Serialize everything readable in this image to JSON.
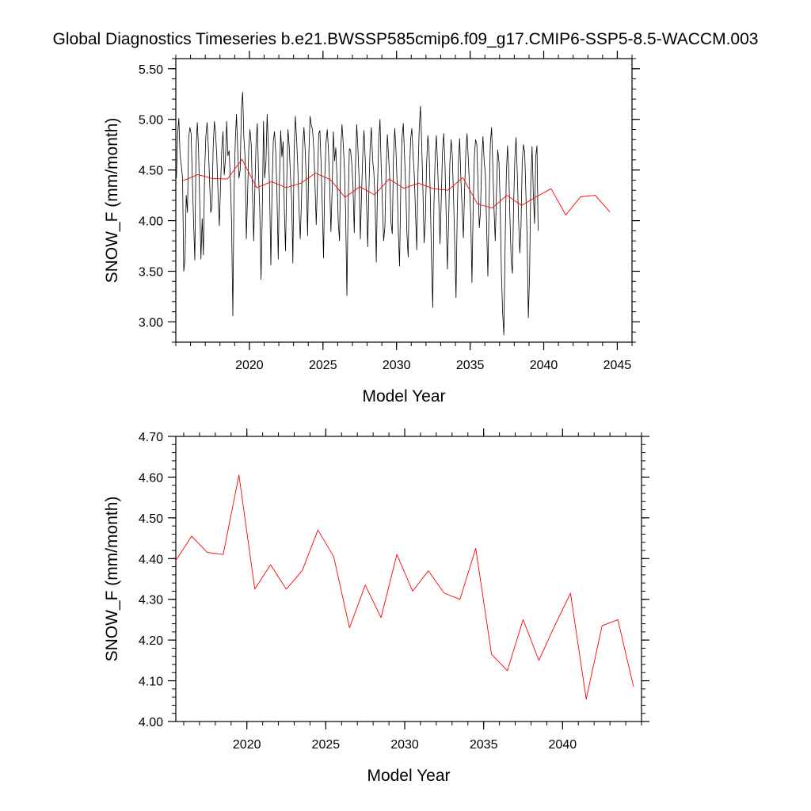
{
  "figure": {
    "title": "Global Diagnostics Timeseries b.e21.BWSSP585cmip6.f09_g17.CMIP6-SSP5-8.5-WACCM.003"
  },
  "colors": {
    "monthly": "#000000",
    "annual": "#ff0000",
    "axis": "#000000"
  },
  "chart_data": [
    {
      "type": "line",
      "title": "Global Diagnostics Timeseries b.e21.BWSSP585cmip6.f09_g17.CMIP6-SSP5-8.5-WACCM.003",
      "xlabel": "Model Year",
      "ylabel": "SNOW_F (mm/month)",
      "xlim": [
        2015,
        2046
      ],
      "ylim": [
        2.8,
        5.6
      ],
      "xticks": [
        2020,
        2025,
        2030,
        2035,
        2040,
        2045
      ],
      "xtick_labels": [
        "2020",
        "2025",
        "2030",
        "2035",
        "2040",
        "2045"
      ],
      "yticks": [
        3.0,
        3.5,
        4.0,
        4.5,
        5.0,
        5.5
      ],
      "ytick_labels": [
        "3.00",
        "3.50",
        "4.00",
        "4.50",
        "5.00",
        "5.50"
      ],
      "series": [
        {
          "name": "monthly",
          "color": "#000000",
          "x_start": 2015.04,
          "x_step": 0.0833333,
          "values": [
            4.42,
            4.86,
            5.01,
            4.64,
            4.55,
            4.42,
            3.5,
            3.62,
            4.25,
            4.08,
            4.82,
            4.92,
            4.86,
            4.41,
            3.99,
            3.61,
            4.69,
            4.97,
            4.73,
            4.18,
            3.62,
            4.02,
            3.66,
            4.49,
            4.83,
            4.97,
            4.74,
            4.42,
            4.08,
            4.14,
            4.73,
            4.98,
            4.85,
            4.62,
            4.25,
            3.95,
            4.35,
            4.7,
            4.88,
            4.45,
            4.61,
            4.98,
            4.64,
            4.69,
            4.4,
            3.98,
            3.06,
            4.28,
            4.79,
            5.05,
            4.69,
            4.42,
            4.5,
            5.1,
            5.27,
            4.82,
            4.62,
            3.82,
            4.22,
            4.71,
            4.9,
            4.75,
            4.3,
            3.8,
            4.31,
            4.79,
            4.96,
            4.44,
            4.1,
            3.42,
            4.05,
            4.98,
            4.42,
            4.58,
            5.05,
            4.73,
            4.3,
            3.56,
            4.31,
            4.79,
            4.88,
            4.67,
            4.27,
            3.62,
            4.37,
            4.89,
            4.63,
            4.78,
            4.12,
            3.7,
            4.42,
            4.9,
            4.73,
            4.45,
            4.2,
            3.58,
            4.69,
            5.03,
            4.81,
            4.53,
            4.11,
            3.82,
            4.21,
            4.74,
            4.92,
            4.7,
            4.37,
            3.85,
            4.66,
            5.03,
            4.94,
            4.9,
            4.71,
            4.37,
            3.96,
            4.36,
            4.86,
            4.89,
            4.55,
            4.13,
            3.63,
            4.43,
            4.77,
            4.9,
            4.7,
            4.35,
            3.89,
            4.3,
            4.88,
            4.59,
            4.72,
            4.41,
            3.98,
            3.8,
            4.69,
            4.95,
            4.77,
            4.51,
            4.08,
            3.26,
            4.1,
            4.71,
            4.7,
            4.56,
            4.34,
            3.88,
            4.53,
            4.95,
            4.72,
            4.39,
            3.82,
            4.26,
            4.66,
            4.89,
            4.6,
            4.21,
            3.74,
            4.31,
            4.74,
            4.92,
            4.6,
            4.48,
            4.21,
            3.59,
            4.35,
            4.78,
            5.0,
            4.53,
            4.16,
            3.8,
            3.94,
            4.5,
            4.85,
            4.64,
            4.41,
            3.98,
            3.87,
            4.61,
            4.91,
            4.71,
            4.35,
            3.88,
            3.55,
            4.37,
            4.82,
            4.96,
            4.66,
            4.33,
            3.87,
            3.64,
            4.43,
            4.81,
            4.91,
            4.65,
            4.45,
            4.06,
            3.71,
            4.48,
            4.91,
            5.13,
            4.77,
            4.3,
            3.78,
            4.01,
            4.55,
            4.84,
            4.7,
            4.25,
            3.62,
            3.14,
            4.15,
            4.64,
            4.84,
            4.55,
            4.18,
            3.77,
            4.22,
            4.68,
            4.86,
            4.57,
            4.03,
            3.52,
            4.0,
            4.57,
            4.8,
            4.64,
            4.22,
            3.75,
            3.24,
            4.07,
            4.6,
            4.81,
            4.39,
            4.13,
            3.83,
            4.3,
            4.69,
            4.86,
            4.61,
            4.34,
            4.03,
            3.39,
            4.15,
            4.64,
            4.8,
            4.75,
            4.35,
            3.93,
            4.1,
            4.62,
            4.83,
            4.58,
            4.46,
            3.92,
            3.45,
            4.18,
            4.76,
            4.92,
            4.55,
            4.11,
            3.8,
            4.28,
            4.7,
            4.58,
            4.18,
            3.48,
            3.1,
            2.87,
            3.72,
            4.45,
            4.74,
            4.49,
            4.02,
            3.6,
            3.48,
            4.15,
            4.62,
            4.82,
            4.45,
            4.02,
            3.68,
            3.93,
            4.58,
            4.75,
            4.68,
            4.27,
            3.82,
            3.04,
            3.48,
            4.38,
            4.73,
            4.3,
            3.97,
            4.63,
            4.74,
            3.9
          ]
        },
        {
          "name": "annual mean",
          "color": "#ff0000",
          "x": [
            2015.5,
            2016.5,
            2017.5,
            2018.5,
            2019.5,
            2020.5,
            2021.5,
            2022.5,
            2023.5,
            2024.5,
            2025.5,
            2026.5,
            2027.5,
            2028.5,
            2029.5,
            2030.5,
            2031.5,
            2032.5,
            2033.5,
            2034.5,
            2035.5,
            2036.5,
            2037.5,
            2038.5,
            2039.5,
            2040.5,
            2041.5,
            2042.5,
            2043.5,
            2044.5
          ],
          "values": [
            4.395,
            4.455,
            4.415,
            4.41,
            4.605,
            4.325,
            4.385,
            4.325,
            4.37,
            4.47,
            4.405,
            4.23,
            4.335,
            4.255,
            4.41,
            4.32,
            4.37,
            4.315,
            4.3,
            4.425,
            4.165,
            4.125,
            4.25,
            4.15,
            4.235,
            4.315,
            4.055,
            4.235,
            4.25,
            4.085
          ]
        }
      ]
    },
    {
      "type": "line",
      "title": "",
      "xlabel": "Model Year",
      "ylabel": "SNOW_F (mm/month)",
      "xlim": [
        2015.5,
        2045.0
      ],
      "ylim": [
        4.0,
        4.7
      ],
      "xticks": [
        2020,
        2025,
        2030,
        2035,
        2040
      ],
      "xtick_labels": [
        "2020",
        "2025",
        "2030",
        "2035",
        "2040"
      ],
      "yticks": [
        4.0,
        4.1,
        4.2,
        4.3,
        4.4,
        4.5,
        4.6,
        4.7
      ],
      "ytick_labels": [
        "4.00",
        "4.10",
        "4.20",
        "4.30",
        "4.40",
        "4.50",
        "4.60",
        "4.70"
      ],
      "series": [
        {
          "name": "annual mean",
          "color": "#ff0000",
          "x": [
            2015.5,
            2016.5,
            2017.5,
            2018.5,
            2019.5,
            2020.5,
            2021.5,
            2022.5,
            2023.5,
            2024.5,
            2025.5,
            2026.5,
            2027.5,
            2028.5,
            2029.5,
            2030.5,
            2031.5,
            2032.5,
            2033.5,
            2034.5,
            2035.5,
            2036.5,
            2037.5,
            2038.5,
            2039.5,
            2040.5,
            2041.5,
            2042.5,
            2043.5,
            2044.5
          ],
          "values": [
            4.395,
            4.455,
            4.415,
            4.41,
            4.605,
            4.325,
            4.385,
            4.325,
            4.37,
            4.47,
            4.405,
            4.23,
            4.335,
            4.255,
            4.41,
            4.32,
            4.37,
            4.315,
            4.3,
            4.425,
            4.165,
            4.125,
            4.25,
            4.15,
            4.235,
            4.315,
            4.055,
            4.235,
            4.25,
            4.085
          ]
        }
      ]
    }
  ]
}
